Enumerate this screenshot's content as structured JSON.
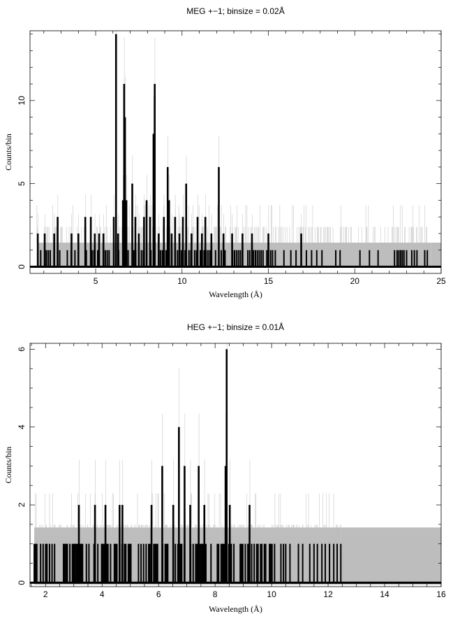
{
  "chart_data": [
    {
      "type": "bar",
      "title": "MEG +−1; binsize = 0.02Å",
      "xlabel": "Wavelength (Å)",
      "ylabel": "Counts/bin",
      "xlim": [
        1.2,
        25
      ],
      "ylim": [
        -0.4,
        14.2
      ],
      "xticks": [
        5,
        10,
        15,
        20,
        25
      ],
      "yticks": [
        0,
        5,
        10
      ],
      "error_band_upper": 1.45,
      "data_range": [
        1.6,
        24.4
      ],
      "peaks": [
        {
          "x": 6.18,
          "y": 14
        },
        {
          "x": 6.65,
          "y": 11
        },
        {
          "x": 8.42,
          "y": 11
        },
        {
          "x": 6.7,
          "y": 9
        },
        {
          "x": 8.35,
          "y": 8
        },
        {
          "x": 9.17,
          "y": 6
        },
        {
          "x": 12.13,
          "y": 6
        },
        {
          "x": 7.12,
          "y": 5
        },
        {
          "x": 10.24,
          "y": 5
        },
        {
          "x": 6.58,
          "y": 4
        },
        {
          "x": 6.78,
          "y": 4
        },
        {
          "x": 7.95,
          "y": 4
        },
        {
          "x": 9.25,
          "y": 4
        },
        {
          "x": 2.8,
          "y": 3
        },
        {
          "x": 4.4,
          "y": 3
        },
        {
          "x": 4.72,
          "y": 3
        },
        {
          "x": 6.05,
          "y": 3
        },
        {
          "x": 7.3,
          "y": 3
        },
        {
          "x": 7.8,
          "y": 3
        },
        {
          "x": 8.15,
          "y": 3
        },
        {
          "x": 8.95,
          "y": 3
        },
        {
          "x": 9.6,
          "y": 3
        },
        {
          "x": 10.05,
          "y": 3
        },
        {
          "x": 10.9,
          "y": 3
        },
        {
          "x": 11.35,
          "y": 3
        },
        {
          "x": 1.65,
          "y": 2
        },
        {
          "x": 2.05,
          "y": 2
        },
        {
          "x": 2.6,
          "y": 2
        },
        {
          "x": 3.6,
          "y": 2
        },
        {
          "x": 4.0,
          "y": 2
        },
        {
          "x": 4.95,
          "y": 2
        },
        {
          "x": 5.2,
          "y": 2
        },
        {
          "x": 5.45,
          "y": 2
        },
        {
          "x": 6.3,
          "y": 2
        },
        {
          "x": 7.5,
          "y": 2
        },
        {
          "x": 8.65,
          "y": 2
        },
        {
          "x": 9.4,
          "y": 2
        },
        {
          "x": 9.85,
          "y": 2
        },
        {
          "x": 10.55,
          "y": 2
        },
        {
          "x": 11.15,
          "y": 2
        },
        {
          "x": 11.7,
          "y": 2
        },
        {
          "x": 12.4,
          "y": 2
        },
        {
          "x": 12.9,
          "y": 2
        },
        {
          "x": 13.5,
          "y": 2
        },
        {
          "x": 14.05,
          "y": 2
        },
        {
          "x": 15.0,
          "y": 2
        },
        {
          "x": 16.9,
          "y": 2
        }
      ],
      "sparse_ones": [
        15.4,
        15.9,
        16.3,
        16.6,
        17.2,
        17.5,
        17.8,
        18.1,
        18.9,
        19.15,
        20.3,
        20.85,
        21.35,
        22.3,
        22.45,
        22.55,
        22.65,
        22.75,
        22.85,
        23.0,
        23.3,
        23.45,
        23.6,
        24.05,
        24.2
      ]
    },
    {
      "type": "bar",
      "title": "HEG +−1; binsize = 0.01Å",
      "xlabel": "Wavelength (Å)",
      "ylabel": "Counts/bin",
      "xlim": [
        1.45,
        16
      ],
      "ylim": [
        -0.1,
        6.15
      ],
      "xticks": [
        2,
        4,
        6,
        8,
        10,
        12,
        14,
        16
      ],
      "yticks": [
        0,
        2,
        4,
        6
      ],
      "error_band_upper": 1.42,
      "data_range": [
        1.6,
        12.45
      ],
      "peaks": [
        {
          "x": 8.41,
          "y": 6
        },
        {
          "x": 6.72,
          "y": 4
        },
        {
          "x": 6.13,
          "y": 3
        },
        {
          "x": 6.92,
          "y": 3
        },
        {
          "x": 7.42,
          "y": 3
        },
        {
          "x": 8.37,
          "y": 3
        },
        {
          "x": 3.18,
          "y": 2
        },
        {
          "x": 3.75,
          "y": 2
        },
        {
          "x": 4.12,
          "y": 2
        },
        {
          "x": 4.62,
          "y": 2
        },
        {
          "x": 4.72,
          "y": 2
        },
        {
          "x": 5.75,
          "y": 2
        },
        {
          "x": 6.52,
          "y": 2
        },
        {
          "x": 7.12,
          "y": 2
        },
        {
          "x": 7.62,
          "y": 2
        },
        {
          "x": 8.52,
          "y": 2
        },
        {
          "x": 9.22,
          "y": 2
        }
      ],
      "sparse_ones": [
        10.5,
        10.65,
        10.95,
        11.1,
        11.35,
        11.5,
        11.62,
        11.78,
        11.9,
        12.05,
        12.2,
        12.32,
        12.45
      ]
    }
  ]
}
